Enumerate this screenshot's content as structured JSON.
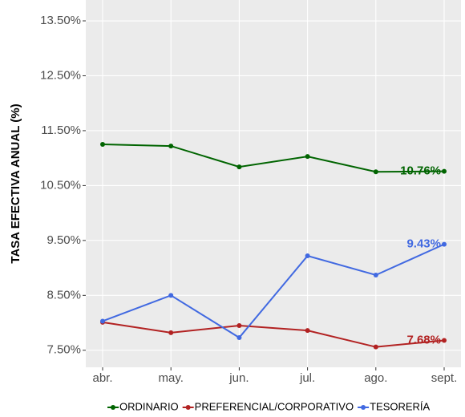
{
  "chart_data": {
    "type": "line",
    "y_label": "TASA EFECTIVA ANUAL (%)",
    "categories": [
      "abr.",
      "may.",
      "jun.",
      "jul.",
      "ago.",
      "sept."
    ],
    "series": [
      {
        "name": "ORDINARIO",
        "color": "#006400",
        "values": [
          11.25,
          11.22,
          10.84,
          11.03,
          10.75,
          10.76
        ],
        "value_labels": [
          null,
          null,
          null,
          null,
          null,
          "10.76%"
        ]
      },
      {
        "name": "PREFERENCIAL/CORPORATIVO",
        "color": "#b22222",
        "values": [
          8.01,
          7.82,
          7.95,
          7.86,
          7.56,
          7.68
        ],
        "value_labels": [
          null,
          null,
          null,
          null,
          null,
          "7.68%"
        ]
      },
      {
        "name": "TESORERÍA",
        "color": "#4169e1",
        "values": [
          8.03,
          8.5,
          7.73,
          9.22,
          8.87,
          9.43
        ],
        "value_labels": [
          null,
          null,
          null,
          null,
          null,
          "9.43%"
        ]
      }
    ],
    "ylim": [
      7.19,
      13.88
    ],
    "yticks": [
      {
        "value": 7.5,
        "label": "7.50%"
      },
      {
        "value": 8.5,
        "label": "8.50%"
      },
      {
        "value": 9.5,
        "label": "9.50%"
      },
      {
        "value": 10.5,
        "label": "10.50%"
      },
      {
        "value": 11.5,
        "label": "11.50%"
      },
      {
        "value": 12.5,
        "label": "12.50%"
      },
      {
        "value": 13.5,
        "label": "13.50%"
      }
    ],
    "grid": true,
    "legend_position": "bottom"
  }
}
